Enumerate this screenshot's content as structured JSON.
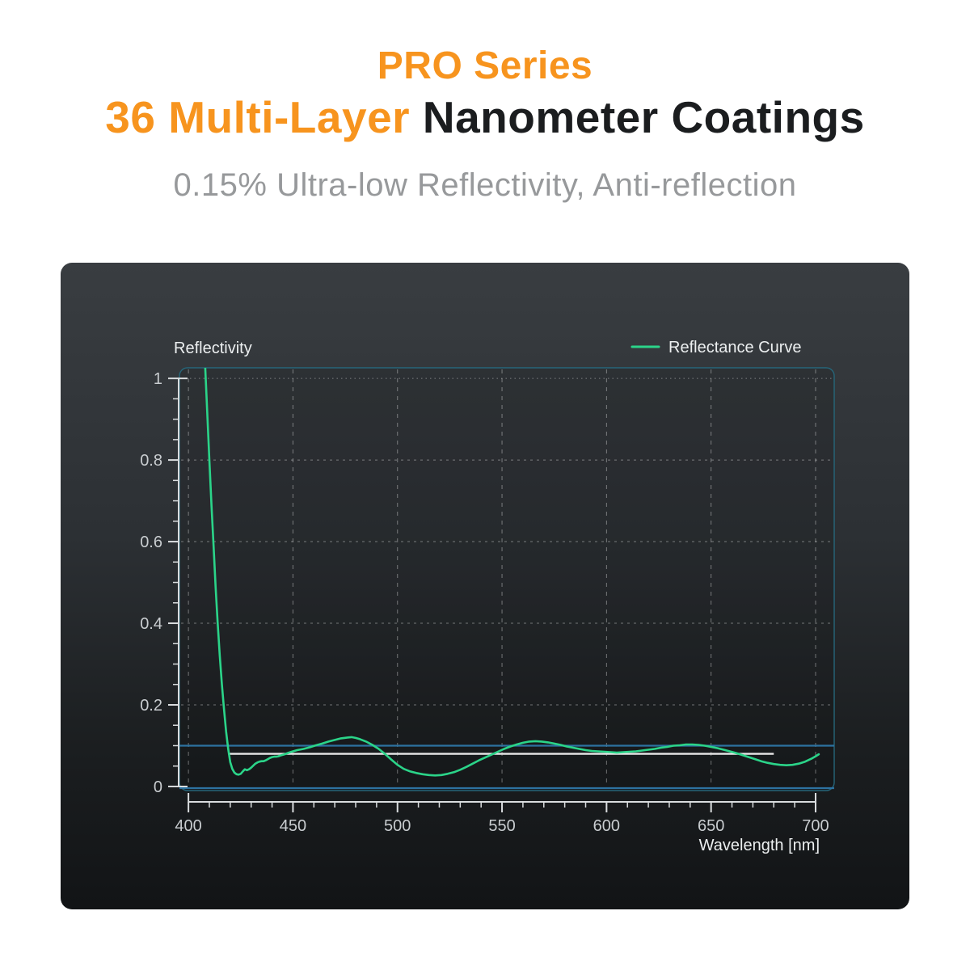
{
  "header": {
    "line1": "PRO Series",
    "line2_highlight": "36 Multi-Layer",
    "line2_rest": " Nanometer Coatings",
    "subtitle": "0.15% Ultra-low Reflectivity, Anti-reflection",
    "accent_color": "#F7941E",
    "heading_color": "#1B1D1F",
    "subtitle_color": "#97999B"
  },
  "chart_data": {
    "type": "line",
    "y_axis_label": "Reflectivity",
    "x_axis_label": "Wavelength [nm]",
    "legend": [
      {
        "label": "Reflectance Curve",
        "color": "#2BD489"
      }
    ],
    "xlim": [
      395.7,
      708.9
    ],
    "ylim": [
      -0.01,
      1.026
    ],
    "x_ticks": [
      {
        "value": 400,
        "label": "400"
      },
      {
        "value": 450,
        "label": "450"
      },
      {
        "value": 500,
        "label": "500"
      },
      {
        "value": 550,
        "label": "550"
      },
      {
        "value": 600,
        "label": "600"
      },
      {
        "value": 650,
        "label": "650"
      },
      {
        "value": 700,
        "label": "700"
      }
    ],
    "x_minor_step": 10,
    "y_ticks": [
      {
        "value": 0,
        "label": "0"
      },
      {
        "value": 0.2,
        "label": "0.2"
      },
      {
        "value": 0.4,
        "label": "0.4"
      },
      {
        "value": 0.6,
        "label": "0.6"
      },
      {
        "value": 0.8,
        "label": "0.8"
      },
      {
        "value": 1,
        "label": "1"
      }
    ],
    "y_minor_step": 0.05,
    "x_gridlines": [
      400,
      450,
      500,
      550,
      600,
      650,
      700
    ],
    "y_gridlines": [
      {
        "value": 1,
        "dash": "1.5 4"
      },
      {
        "value": 0.8,
        "dash": "3 5"
      },
      {
        "value": 0.6,
        "dash": "3 5"
      },
      {
        "value": 0.4,
        "dash": "3 5"
      },
      {
        "value": 0.2,
        "dash": "3 5"
      }
    ],
    "ref_lines": [
      {
        "name": "reflectivity-0.1-blue-line",
        "value": 0.1,
        "color": "#2D72A0",
        "from": 395.7,
        "to": 708.9,
        "width": 2.2
      },
      {
        "name": "reflectivity-0-blue-line",
        "value": -0.004,
        "color": "#2D72A0",
        "from": 395.7,
        "to": 708.9,
        "width": 2.2
      },
      {
        "name": "average-reflectivity-white-line",
        "value": 0.08,
        "color": "#E8E8E8",
        "from": 419,
        "to": 680,
        "width": 2.4
      }
    ],
    "series": [
      {
        "name": "Reflectance Curve",
        "color": "#2BD489",
        "width": 2.6,
        "points": [
          [
            408,
            1.03
          ],
          [
            408.6,
            0.96
          ],
          [
            409.3,
            0.88
          ],
          [
            410,
            0.8
          ],
          [
            411,
            0.69
          ],
          [
            412,
            0.59
          ],
          [
            413,
            0.49
          ],
          [
            414,
            0.4
          ],
          [
            415,
            0.32
          ],
          [
            416,
            0.25
          ],
          [
            417,
            0.19
          ],
          [
            418,
            0.135
          ],
          [
            419,
            0.092
          ],
          [
            420,
            0.06
          ],
          [
            421,
            0.043
          ],
          [
            422,
            0.034
          ],
          [
            423,
            0.03
          ],
          [
            424,
            0.029
          ],
          [
            425,
            0.031
          ],
          [
            426,
            0.037
          ],
          [
            427,
            0.042
          ],
          [
            428,
            0.04
          ],
          [
            429,
            0.042
          ],
          [
            430,
            0.046
          ],
          [
            431,
            0.051
          ],
          [
            432,
            0.056
          ],
          [
            433,
            0.059
          ],
          [
            434,
            0.061
          ],
          [
            435,
            0.062
          ],
          [
            436,
            0.062
          ],
          [
            437,
            0.064
          ],
          [
            438,
            0.067
          ],
          [
            439,
            0.07
          ],
          [
            440,
            0.072
          ],
          [
            441,
            0.073
          ],
          [
            442,
            0.073
          ],
          [
            443,
            0.074
          ],
          [
            444,
            0.076
          ],
          [
            446,
            0.079
          ],
          [
            448,
            0.083
          ],
          [
            450,
            0.086
          ],
          [
            452,
            0.089
          ],
          [
            455,
            0.092
          ],
          [
            458,
            0.096
          ],
          [
            461,
            0.101
          ],
          [
            464,
            0.105
          ],
          [
            467,
            0.11
          ],
          [
            470,
            0.114
          ],
          [
            473,
            0.118
          ],
          [
            476,
            0.12
          ],
          [
            478,
            0.121
          ],
          [
            480,
            0.119
          ],
          [
            482,
            0.116
          ],
          [
            485,
            0.11
          ],
          [
            488,
            0.102
          ],
          [
            491,
            0.092
          ],
          [
            494,
            0.08
          ],
          [
            497,
            0.066
          ],
          [
            500,
            0.053
          ],
          [
            503,
            0.043
          ],
          [
            506,
            0.037
          ],
          [
            509,
            0.033
          ],
          [
            512,
            0.03
          ],
          [
            515,
            0.028
          ],
          [
            518,
            0.027
          ],
          [
            521,
            0.028
          ],
          [
            524,
            0.031
          ],
          [
            527,
            0.035
          ],
          [
            530,
            0.041
          ],
          [
            533,
            0.048
          ],
          [
            536,
            0.056
          ],
          [
            539,
            0.064
          ],
          [
            542,
            0.071
          ],
          [
            545,
            0.078
          ],
          [
            548,
            0.085
          ],
          [
            551,
            0.092
          ],
          [
            554,
            0.098
          ],
          [
            557,
            0.103
          ],
          [
            560,
            0.107
          ],
          [
            563,
            0.11
          ],
          [
            566,
            0.111
          ],
          [
            569,
            0.11
          ],
          [
            572,
            0.108
          ],
          [
            575,
            0.105
          ],
          [
            578,
            0.102
          ],
          [
            581,
            0.098
          ],
          [
            584,
            0.095
          ],
          [
            587,
            0.092
          ],
          [
            590,
            0.089
          ],
          [
            593,
            0.087
          ],
          [
            596,
            0.086
          ],
          [
            599,
            0.085
          ],
          [
            602,
            0.084
          ],
          [
            605,
            0.083
          ],
          [
            608,
            0.084
          ],
          [
            611,
            0.085
          ],
          [
            614,
            0.086
          ],
          [
            617,
            0.088
          ],
          [
            620,
            0.09
          ],
          [
            623,
            0.092
          ],
          [
            626,
            0.095
          ],
          [
            629,
            0.097
          ],
          [
            632,
            0.1
          ],
          [
            635,
            0.101
          ],
          [
            638,
            0.103
          ],
          [
            641,
            0.103
          ],
          [
            644,
            0.102
          ],
          [
            647,
            0.1
          ],
          [
            650,
            0.097
          ],
          [
            653,
            0.094
          ],
          [
            656,
            0.09
          ],
          [
            659,
            0.086
          ],
          [
            662,
            0.082
          ],
          [
            665,
            0.077
          ],
          [
            668,
            0.072
          ],
          [
            671,
            0.067
          ],
          [
            674,
            0.062
          ],
          [
            677,
            0.058
          ],
          [
            680,
            0.055
          ],
          [
            683,
            0.053
          ],
          [
            686,
            0.052
          ],
          [
            689,
            0.053
          ],
          [
            692,
            0.056
          ],
          [
            695,
            0.061
          ],
          [
            698,
            0.068
          ],
          [
            700,
            0.074
          ],
          [
            701.5,
            0.079
          ]
        ]
      }
    ],
    "colors": {
      "frame": "#26667A",
      "axis": "#D9DCDE",
      "grid": "#FFFFFF",
      "grid_opacity": 0.38,
      "tick_label": "#C9CDD0",
      "axis_title": "#ECEFF0",
      "plot_fill": "rgba(0,0,0,0.12)"
    }
  }
}
